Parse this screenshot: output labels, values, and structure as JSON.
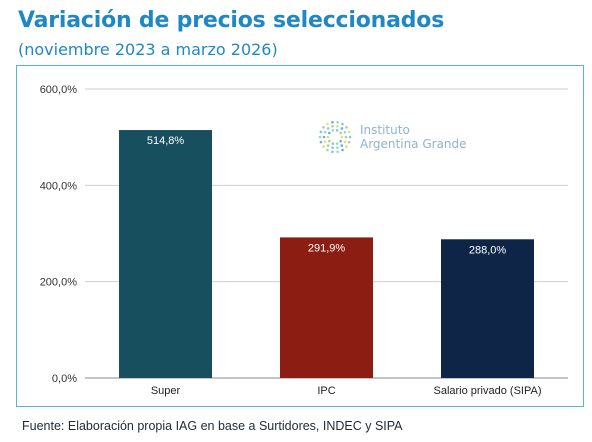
{
  "header": {
    "title": "Variación de precios seleccionados",
    "subtitle": "(noviembre 2023 a marzo 2026)"
  },
  "logo": {
    "line1": "Instituto",
    "line2": "Argentina Grande",
    "icon": "dotted-circle-logo-icon"
  },
  "source": "Fuente: Elaboración propia IAG en base a Surtidores, INDEC y SIPA",
  "colors": {
    "title": "#1e88c7",
    "frame": "#5ab4d6",
    "grid": "#cfcfcf"
  },
  "chart_data": {
    "type": "bar",
    "categories": [
      "Super",
      "IPC",
      "Salario privado (SIPA)"
    ],
    "values": [
      514.8,
      291.9,
      288.0
    ],
    "data_labels": [
      "514,8%",
      "291,9%",
      "288,0%"
    ],
    "colors": [
      "#174f5f",
      "#8b1d13",
      "#0f2548"
    ],
    "yticks": [
      0,
      200,
      400,
      600
    ],
    "ytick_labels": [
      "0,0%",
      "200,0%",
      "400,0%",
      "600,0%"
    ],
    "ylim": [
      0,
      600
    ],
    "grid": true,
    "legend": "none"
  }
}
